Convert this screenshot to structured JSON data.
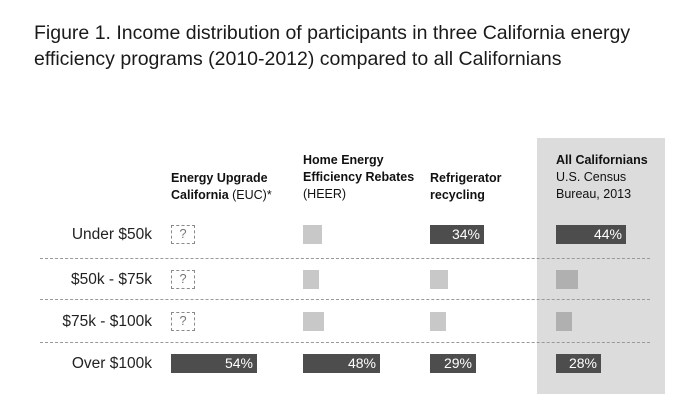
{
  "title": "Figure 1. Income distribution of participants in three California energy efficiency programs (2010-2012) compared to all Californians",
  "chart_data": {
    "type": "bar",
    "title": "Figure 1. Income distribution of participants in three California energy efficiency programs (2010-2012) compared to all Californians",
    "categories": [
      "Under $50k",
      "$50k - $75k",
      "$75k - $100k",
      "Over $100k"
    ],
    "series": [
      {
        "name_bold": "Energy Upgrade California",
        "name_rest": " (EUC)*",
        "values": [
          null,
          null,
          null,
          54
        ],
        "labels": [
          "?",
          "?",
          "?",
          "54%"
        ]
      },
      {
        "name_bold": "Home Energy Efficiency Rebates",
        "name_rest": " (HEER)",
        "values": [
          12,
          10,
          13,
          48
        ],
        "labels": [
          "",
          "",
          "",
          "48%"
        ]
      },
      {
        "name_bold": "Refrigerator recycling",
        "name_rest": "",
        "values": [
          34,
          11,
          10,
          29
        ],
        "labels": [
          "34%",
          "",
          "",
          "29%"
        ]
      },
      {
        "name_bold": "All Californians",
        "name_rest": "U.S. Census Bureau, 2013",
        "values": [
          44,
          14,
          10,
          28
        ],
        "labels": [
          "44%",
          "",
          "",
          "28%"
        ]
      }
    ],
    "unit": "%",
    "highlight_colors": {
      "labeled": "#4d4d4d",
      "unlabeled": "#c8c8c8",
      "highlight_column": "#dcdcdc"
    }
  }
}
